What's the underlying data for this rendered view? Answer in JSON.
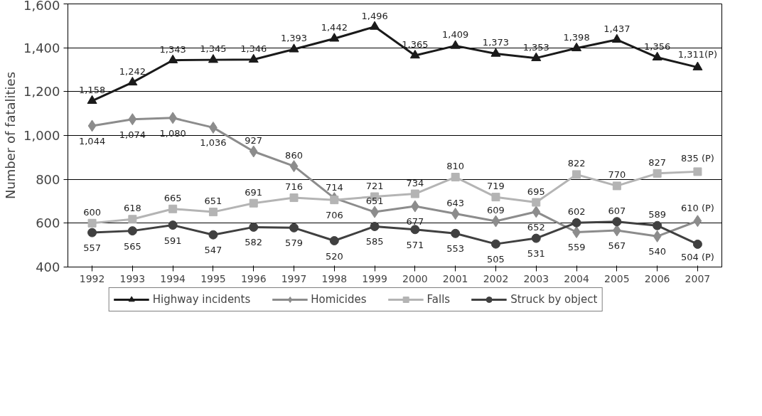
{
  "chart_data": {
    "type": "line",
    "ylabel": "Number of fatalities",
    "categories": [
      "1992",
      "1993",
      "1994",
      "1995",
      "1996",
      "1997",
      "1998",
      "1999",
      "2000",
      "2001",
      "2002",
      "2003",
      "2004",
      "2005",
      "2006",
      "2007"
    ],
    "series": [
      {
        "name": "Highway incidents",
        "color": "#1a1a1a",
        "marker": "triangle",
        "values": [
          1158,
          1242,
          1343,
          1345,
          1346,
          1393,
          1442,
          1496,
          1365,
          1409,
          1373,
          1353,
          1398,
          1437,
          1356,
          1311
        ],
        "value_labels": [
          "1,158",
          "1,242",
          "1,343",
          "1,345",
          "1,346",
          "1,393",
          "1,442",
          "1,496",
          "1,365",
          "1,409",
          "1,373",
          "1,353",
          "1,398",
          "1,437",
          "1,356",
          "1,311(P)"
        ]
      },
      {
        "name": "Homicides",
        "color": "#8c8c8c",
        "marker": "diamond",
        "values": [
          1044,
          1074,
          1080,
          1036,
          927,
          860,
          714,
          651,
          677,
          643,
          609,
          652,
          559,
          567,
          540,
          610
        ],
        "value_labels": [
          "1,044",
          "1,074",
          "1,080",
          "1,036",
          "927",
          "860",
          "714",
          "651",
          "677",
          "643",
          "609",
          "652",
          "559",
          "567",
          "540",
          "610 (P)"
        ]
      },
      {
        "name": "Falls",
        "color": "#b4b4b4",
        "marker": "square",
        "values": [
          600,
          618,
          665,
          651,
          691,
          716,
          706,
          721,
          734,
          810,
          719,
          695,
          822,
          770,
          827,
          835
        ],
        "value_labels": [
          "600",
          "618",
          "665",
          "651",
          "691",
          "716",
          "706",
          "721",
          "734",
          "810",
          "719",
          "695",
          "822",
          "770",
          "827",
          "835 (P)"
        ]
      },
      {
        "name": "Struck by object",
        "color": "#404040",
        "marker": "circle",
        "values": [
          557,
          565,
          591,
          547,
          582,
          579,
          520,
          585,
          571,
          553,
          505,
          531,
          602,
          607,
          589,
          504
        ],
        "value_labels": [
          "557",
          "565",
          "591",
          "547",
          "582",
          "579",
          "520",
          "585",
          "571",
          "553",
          "505",
          "531",
          "602",
          "607",
          "589",
          "504 (P)"
        ]
      }
    ],
    "ylim": [
      400,
      1600
    ],
    "yticks": [
      400,
      600,
      800,
      {
        "value": 1000,
        "label": "1,000"
      },
      {
        "value": 1200,
        "label": "1,200"
      },
      {
        "value": 1400,
        "label": "1,400"
      },
      {
        "value": 1600,
        "label": "1,600"
      }
    ],
    "grid": "y",
    "legend": "bottom",
    "line_style": "solid"
  }
}
